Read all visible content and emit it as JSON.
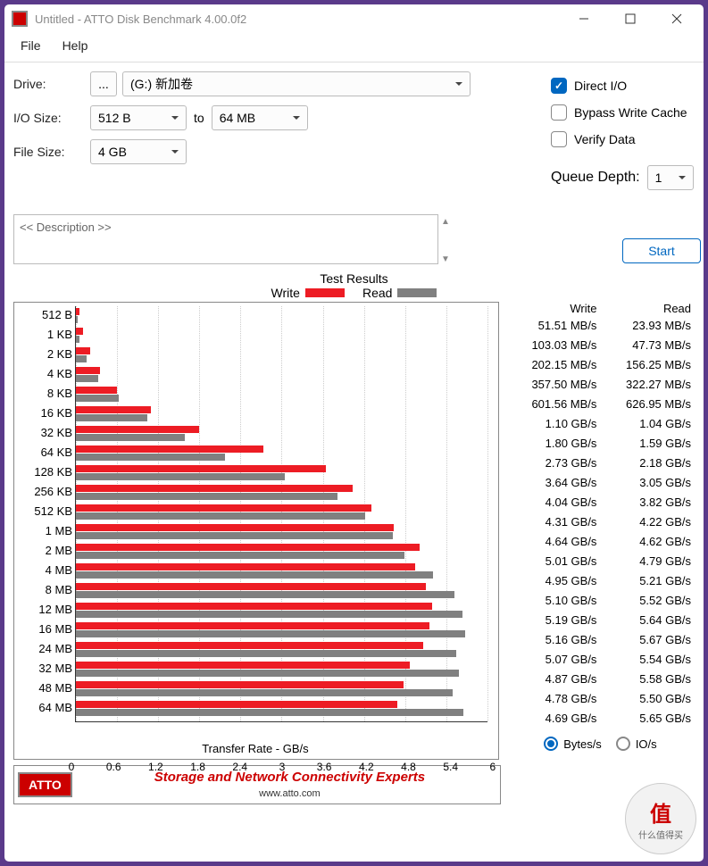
{
  "window": {
    "title": "Untitled - ATTO Disk Benchmark 4.00.0f2"
  },
  "menu": {
    "file": "File",
    "help": "Help"
  },
  "form": {
    "drive_label": "Drive:",
    "drive_value": "(G:) 新加卷",
    "io_label": "I/O Size:",
    "io_from": "512 B",
    "to": "to",
    "io_to": "64 MB",
    "fs_label": "File Size:",
    "fs_value": "4 GB"
  },
  "options": {
    "direct_io": "Direct I/O",
    "bypass": "Bypass Write Cache",
    "verify": "Verify Data",
    "qd_label": "Queue Depth:",
    "qd_value": "1",
    "start": "Start"
  },
  "desc_placeholder": "<< Description >>",
  "results_title": "Test Results",
  "legend": {
    "write": "Write",
    "read": "Read"
  },
  "colors": {
    "write": "#ed1c24",
    "read": "#808080",
    "axis": "#333333",
    "grid": "#e0e0e0"
  },
  "chart": {
    "xmax": 6.0,
    "xticks": [
      0,
      0.6,
      1.2,
      1.8,
      2.4,
      3.0,
      3.6,
      4.2,
      4.8,
      5.4,
      6
    ],
    "xlabel": "Transfer Rate - GB/s",
    "rows": [
      {
        "label": "512 B",
        "write_gb": 0.05,
        "read_gb": 0.024,
        "write_txt": "51.51 MB/s",
        "read_txt": "23.93 MB/s"
      },
      {
        "label": "1 KB",
        "write_gb": 0.103,
        "read_gb": 0.048,
        "write_txt": "103.03 MB/s",
        "read_txt": "47.73 MB/s"
      },
      {
        "label": "2 KB",
        "write_gb": 0.202,
        "read_gb": 0.156,
        "write_txt": "202.15 MB/s",
        "read_txt": "156.25 MB/s"
      },
      {
        "label": "4 KB",
        "write_gb": 0.358,
        "read_gb": 0.322,
        "write_txt": "357.50 MB/s",
        "read_txt": "322.27 MB/s"
      },
      {
        "label": "8 KB",
        "write_gb": 0.602,
        "read_gb": 0.627,
        "write_txt": "601.56 MB/s",
        "read_txt": "626.95 MB/s"
      },
      {
        "label": "16 KB",
        "write_gb": 1.1,
        "read_gb": 1.04,
        "write_txt": "1.10 GB/s",
        "read_txt": "1.04 GB/s"
      },
      {
        "label": "32 KB",
        "write_gb": 1.8,
        "read_gb": 1.59,
        "write_txt": "1.80 GB/s",
        "read_txt": "1.59 GB/s"
      },
      {
        "label": "64 KB",
        "write_gb": 2.73,
        "read_gb": 2.18,
        "write_txt": "2.73 GB/s",
        "read_txt": "2.18 GB/s"
      },
      {
        "label": "128 KB",
        "write_gb": 3.64,
        "read_gb": 3.05,
        "write_txt": "3.64 GB/s",
        "read_txt": "3.05 GB/s"
      },
      {
        "label": "256 KB",
        "write_gb": 4.04,
        "read_gb": 3.82,
        "write_txt": "4.04 GB/s",
        "read_txt": "3.82 GB/s"
      },
      {
        "label": "512 KB",
        "write_gb": 4.31,
        "read_gb": 4.22,
        "write_txt": "4.31 GB/s",
        "read_txt": "4.22 GB/s"
      },
      {
        "label": "1 MB",
        "write_gb": 4.64,
        "read_gb": 4.62,
        "write_txt": "4.64 GB/s",
        "read_txt": "4.62 GB/s"
      },
      {
        "label": "2 MB",
        "write_gb": 5.01,
        "read_gb": 4.79,
        "write_txt": "5.01 GB/s",
        "read_txt": "4.79 GB/s"
      },
      {
        "label": "4 MB",
        "write_gb": 4.95,
        "read_gb": 5.21,
        "write_txt": "4.95 GB/s",
        "read_txt": "5.21 GB/s"
      },
      {
        "label": "8 MB",
        "write_gb": 5.1,
        "read_gb": 5.52,
        "write_txt": "5.10 GB/s",
        "read_txt": "5.52 GB/s"
      },
      {
        "label": "12 MB",
        "write_gb": 5.19,
        "read_gb": 5.64,
        "write_txt": "5.19 GB/s",
        "read_txt": "5.64 GB/s"
      },
      {
        "label": "16 MB",
        "write_gb": 5.16,
        "read_gb": 5.67,
        "write_txt": "5.16 GB/s",
        "read_txt": "5.67 GB/s"
      },
      {
        "label": "24 MB",
        "write_gb": 5.07,
        "read_gb": 5.54,
        "write_txt": "5.07 GB/s",
        "read_txt": "5.54 GB/s"
      },
      {
        "label": "32 MB",
        "write_gb": 4.87,
        "read_gb": 5.58,
        "write_txt": "4.87 GB/s",
        "read_txt": "5.58 GB/s"
      },
      {
        "label": "48 MB",
        "write_gb": 4.78,
        "read_gb": 5.5,
        "write_txt": "4.78 GB/s",
        "read_txt": "5.50 GB/s"
      },
      {
        "label": "64 MB",
        "write_gb": 4.69,
        "read_gb": 5.65,
        "write_txt": "4.69 GB/s",
        "read_txt": "5.65 GB/s"
      }
    ]
  },
  "data_head": {
    "write": "Write",
    "read": "Read"
  },
  "units": {
    "bytes": "Bytes/s",
    "ios": "IO/s"
  },
  "banner": {
    "logo": "ATTO",
    "text": "Storage and Network Connectivity Experts",
    "url": "www.atto.com"
  },
  "watermark": {
    "big": "值",
    "sub": "什么值得买"
  }
}
